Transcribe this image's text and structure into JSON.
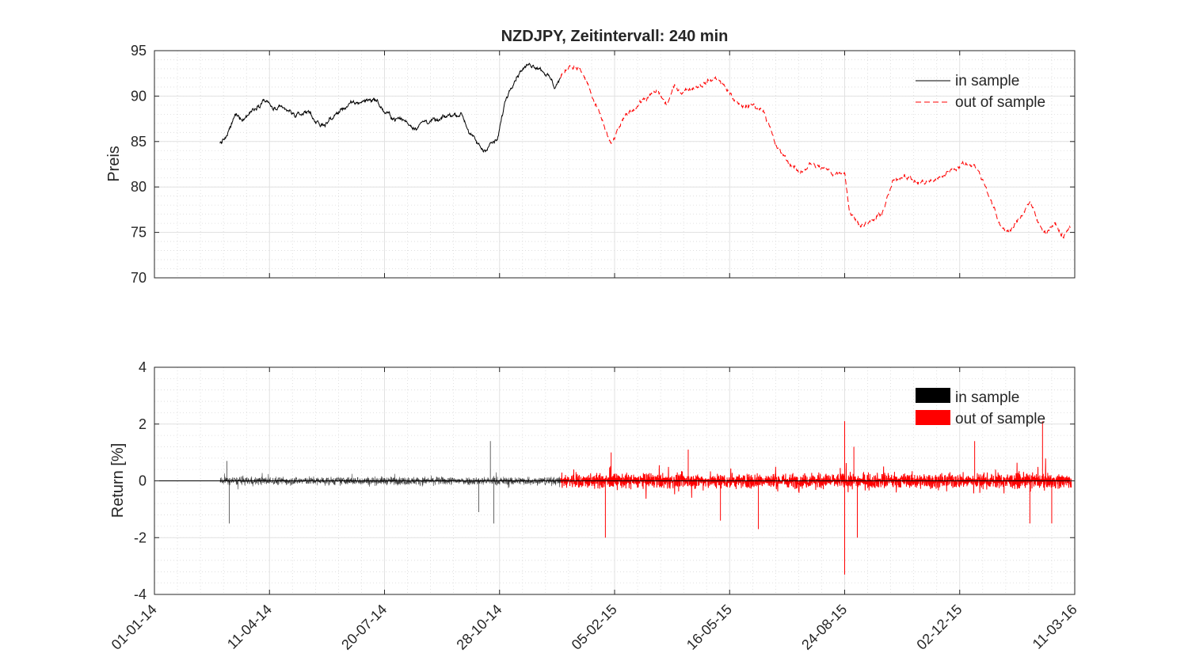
{
  "chart_data": [
    {
      "type": "line",
      "title": "NZDJPY, Zeitintervall: 240 min",
      "ylabel": "Preis",
      "xlabel": "",
      "x_axis": "date",
      "xlim": [
        "2014-01-01",
        "2016-03-11"
      ],
      "ylim": [
        70,
        95
      ],
      "yticks": [
        "70",
        "75",
        "80",
        "85",
        "90",
        "95"
      ],
      "xtick_labels": [
        "01-01-14",
        "11-04-14",
        "20-07-14",
        "28-10-14",
        "05-02-15",
        "16-05-15",
        "24-08-15",
        "02-12-15",
        "11-03-16"
      ],
      "grid": true,
      "minor_grid": true,
      "legend_position": "top-right",
      "legend": [
        "in sample",
        "out of sample"
      ],
      "series": [
        {
          "name": "in sample",
          "color": "#000000",
          "line_style": "solid",
          "x": [
            "2014-02-27",
            "2014-03-05",
            "2014-03-12",
            "2014-03-20",
            "2014-03-28",
            "2014-04-06",
            "2014-04-15",
            "2014-04-25",
            "2014-05-05",
            "2014-05-15",
            "2014-05-25",
            "2014-06-05",
            "2014-06-15",
            "2014-06-25",
            "2014-07-05",
            "2014-07-12",
            "2014-07-20",
            "2014-07-28",
            "2014-08-05",
            "2014-08-15",
            "2014-08-25",
            "2014-09-05",
            "2014-09-15",
            "2014-09-25",
            "2014-10-02",
            "2014-10-08",
            "2014-10-14",
            "2014-10-20",
            "2014-10-26",
            "2014-11-02",
            "2014-11-09",
            "2014-11-16",
            "2014-11-24",
            "2014-12-01",
            "2014-12-08",
            "2014-12-15",
            "2014-12-20"
          ],
          "y": [
            84.8,
            85.5,
            87.8,
            87.6,
            88.6,
            89.7,
            88.5,
            88.4,
            87.8,
            88.4,
            86.6,
            87.6,
            88.8,
            89.2,
            89.6,
            89.7,
            88.2,
            87.6,
            87.4,
            86.6,
            87.3,
            87.2,
            87.9,
            88.1,
            86.0,
            84.8,
            84.0,
            84.8,
            85.0,
            89.5,
            91.8,
            93.0,
            93.5,
            93.3,
            92.5,
            91.0,
            92.0
          ]
        },
        {
          "name": "out of sample",
          "color": "#ff0000",
          "line_style": "dashed",
          "x": [
            "2014-12-20",
            "2014-12-28",
            "2015-01-05",
            "2015-01-12",
            "2015-01-19",
            "2015-01-26",
            "2015-02-02",
            "2015-02-09",
            "2015-02-16",
            "2015-03-01",
            "2015-03-15",
            "2015-03-22",
            "2015-03-29",
            "2015-04-05",
            "2015-04-15",
            "2015-04-25",
            "2015-05-05",
            "2015-05-15",
            "2015-05-25",
            "2015-06-05",
            "2015-06-15",
            "2015-06-25",
            "2015-07-05",
            "2015-07-15",
            "2015-07-25",
            "2015-08-05",
            "2015-08-15",
            "2015-08-24",
            "2015-08-28",
            "2015-09-05",
            "2015-09-15",
            "2015-09-25",
            "2015-10-05",
            "2015-10-15",
            "2015-10-25",
            "2015-11-05",
            "2015-11-15",
            "2015-11-25",
            "2015-12-05",
            "2015-12-15",
            "2015-12-25",
            "2016-01-05",
            "2016-01-15",
            "2016-01-25",
            "2016-02-01",
            "2016-02-08",
            "2016-02-15",
            "2016-02-22",
            "2016-03-01",
            "2016-03-07"
          ],
          "y": [
            92.0,
            93.5,
            93.0,
            91.5,
            89.0,
            87.0,
            84.5,
            86.5,
            88.0,
            89.5,
            90.5,
            89.0,
            91.0,
            90.5,
            91.0,
            91.5,
            92.0,
            90.5,
            88.8,
            89.0,
            88.5,
            84.5,
            83.0,
            81.5,
            82.5,
            82.0,
            81.5,
            81.8,
            77.5,
            76.0,
            76.0,
            77.0,
            80.5,
            81.5,
            80.5,
            80.5,
            81.0,
            82.0,
            82.5,
            82.5,
            80.0,
            76.0,
            75.0,
            77.0,
            78.5,
            76.0,
            75.0,
            76.0,
            74.5,
            75.5
          ]
        }
      ]
    },
    {
      "type": "line",
      "title": "",
      "ylabel": "Return [%]",
      "xlabel": "",
      "x_axis": "date",
      "xlim": [
        "2014-01-01",
        "2016-03-11"
      ],
      "ylim": [
        -4,
        4
      ],
      "yticks": [
        "-4",
        "-2",
        "0",
        "2",
        "4"
      ],
      "xtick_labels": [
        "01-01-14",
        "11-04-14",
        "20-07-14",
        "28-10-14",
        "05-02-15",
        "16-05-15",
        "24-08-15",
        "02-12-15",
        "11-03-16"
      ],
      "grid": true,
      "minor_grid": true,
      "legend_position": "top-right",
      "legend": [
        "in sample",
        "out of sample"
      ],
      "series": [
        {
          "name": "in sample",
          "color": "#000000",
          "range": [
            "2014-02-27",
            "2014-12-20"
          ],
          "typical_amplitude": 0.25,
          "extremes": [
            {
              "x": "2014-03-07",
              "y": -1.5
            },
            {
              "x": "2014-03-05",
              "y": 0.7
            },
            {
              "x": "2014-10-20",
              "y": 1.4
            },
            {
              "x": "2014-10-23",
              "y": -1.5
            },
            {
              "x": "2014-10-10",
              "y": -1.1
            }
          ]
        },
        {
          "name": "out of sample",
          "color": "#ff0000",
          "range": [
            "2014-12-20",
            "2016-03-08"
          ],
          "typical_amplitude": 0.45,
          "extremes": [
            {
              "x": "2015-01-28",
              "y": -2.0
            },
            {
              "x": "2015-02-02",
              "y": 1.0
            },
            {
              "x": "2015-04-10",
              "y": 1.1
            },
            {
              "x": "2015-05-08",
              "y": -1.4
            },
            {
              "x": "2015-06-10",
              "y": -1.7
            },
            {
              "x": "2015-08-24",
              "y": -3.3
            },
            {
              "x": "2015-08-24",
              "y": 2.1
            },
            {
              "x": "2015-09-01",
              "y": 1.2
            },
            {
              "x": "2015-09-04",
              "y": -2.0
            },
            {
              "x": "2015-12-15",
              "y": 1.4
            },
            {
              "x": "2016-02-01",
              "y": -1.5
            },
            {
              "x": "2016-02-12",
              "y": 2.1
            },
            {
              "x": "2016-02-20",
              "y": -1.5
            }
          ]
        }
      ]
    }
  ]
}
